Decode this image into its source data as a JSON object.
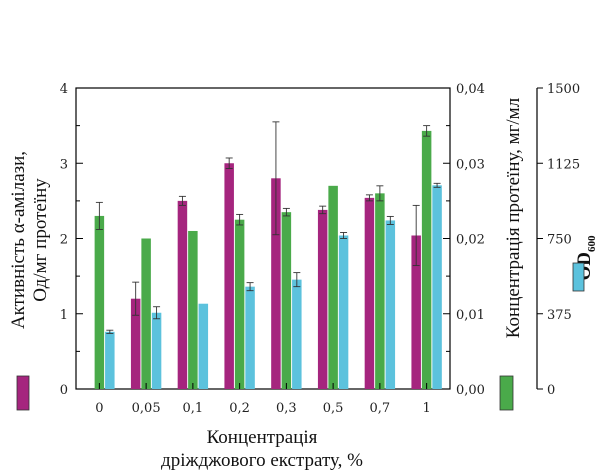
{
  "chart_data": {
    "type": "bar",
    "categories": [
      "0",
      "0,05",
      "0,1",
      "0,2",
      "0,3",
      "0,5",
      "0,7",
      "1"
    ],
    "x_label": "Концентрація дріжджового екстрату, %",
    "xlabel_lines": [
      "Концентрація",
      "дріжджового екстрату, %"
    ],
    "ylabel_left_lines": [
      "Активність α-амілази,",
      "Од/мг протеїну"
    ],
    "ylabel_mid": "Концентрація протеїну, мг/мл",
    "ylabel_right": "OD",
    "ylabel_right_sub": "600",
    "axes": {
      "left": {
        "ylim": [
          0,
          4
        ],
        "ticks": [
          "0",
          "1",
          "2",
          "3",
          "4"
        ],
        "tick_values": [
          0,
          1,
          2,
          3,
          4
        ]
      },
      "middle": {
        "ylim": [
          0,
          0.04
        ],
        "ticks": [
          "0,00",
          "0,01",
          "0,02",
          "0,03",
          "0,04"
        ],
        "tick_values": [
          0,
          0.01,
          0.02,
          0.03,
          0.04
        ]
      },
      "right": {
        "ylim": [
          0,
          1500
        ],
        "ticks": [
          "0",
          "375",
          "750",
          "1125",
          "1500"
        ],
        "tick_values": [
          0,
          375,
          750,
          1125,
          1500
        ]
      }
    },
    "series": [
      {
        "key": "amylase",
        "axis": "left",
        "color": "#a5257e",
        "values": [
          null,
          1.2,
          2.5,
          3.0,
          2.8,
          2.38,
          2.54,
          2.04
        ],
        "errors": [
          null,
          0.22,
          0.06,
          0.07,
          0.75,
          0.05,
          0.04,
          0.4
        ]
      },
      {
        "key": "protein",
        "axis": "middle",
        "color": "#4aaa4a",
        "values": [
          0.023,
          0.02,
          0.021,
          0.0225,
          0.0235,
          0.027,
          0.026,
          0.0343
        ],
        "errors": [
          0.0018,
          0.0,
          0.0,
          0.0007,
          0.0005,
          0.0,
          0.001,
          0.0007
        ]
      },
      {
        "key": "od600",
        "axis": "right",
        "color": "#5cc2dd",
        "values": [
          285,
          380,
          425,
          510,
          545,
          765,
          840,
          1015
        ],
        "errors": [
          8,
          30,
          0,
          20,
          35,
          15,
          20,
          10
        ]
      }
    ],
    "grid": false,
    "legend": "vertical color swatches beside the three y-axis titles"
  }
}
